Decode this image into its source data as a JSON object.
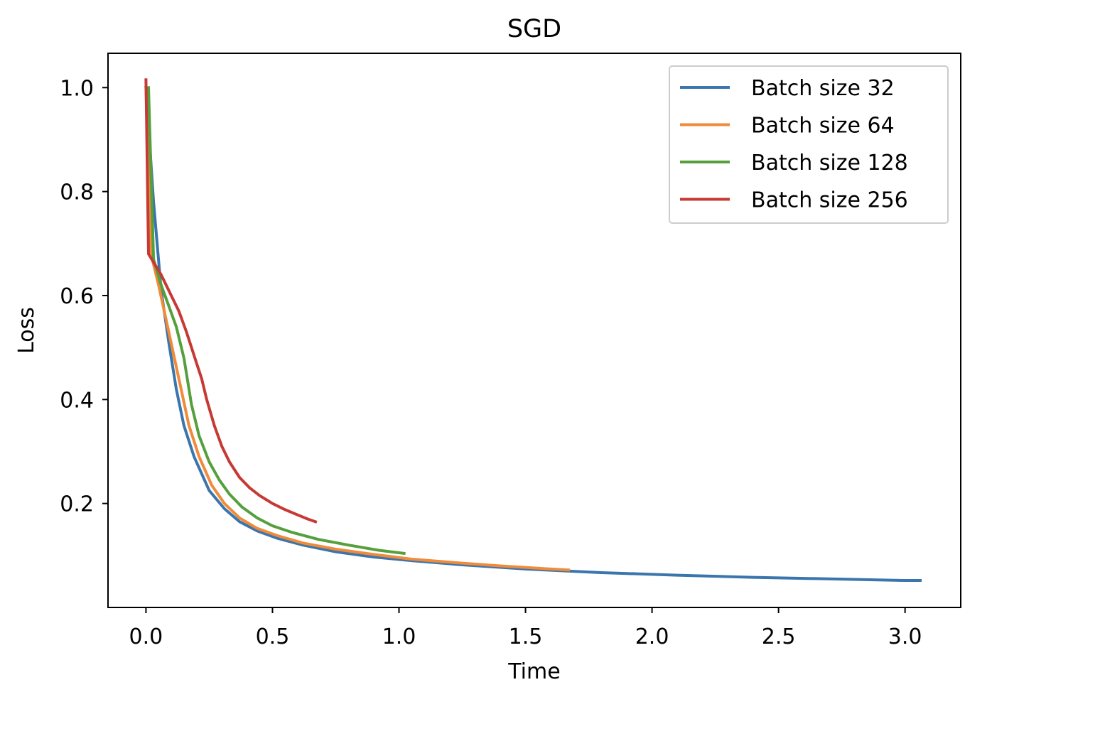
{
  "chart_data": {
    "type": "line",
    "title": "SGD",
    "xlabel": "Time",
    "ylabel": "Loss",
    "xlim": [
      -0.15,
      3.22
    ],
    "ylim": [
      0.0,
      1.066
    ],
    "xticks": [
      0.0,
      0.5,
      1.0,
      1.5,
      2.0,
      2.5,
      3.0
    ],
    "xtick_labels": [
      "0.0",
      "0.5",
      "1.0",
      "1.5",
      "2.0",
      "2.5",
      "3.0"
    ],
    "yticks": [
      0.2,
      0.4,
      0.6,
      0.8,
      1.0
    ],
    "ytick_labels": [
      "0.2",
      "0.4",
      "0.6",
      "0.8",
      "1.0"
    ],
    "grid": false,
    "legend_position": "top-right",
    "series": [
      {
        "name": "Batch size 32",
        "color": "#3a75ad",
        "x": [
          0.0,
          0.03,
          0.06,
          0.09,
          0.12,
          0.15,
          0.19,
          0.25,
          0.31,
          0.37,
          0.44,
          0.52,
          0.62,
          0.75,
          0.9,
          1.05,
          1.25,
          1.5,
          1.8,
          2.1,
          2.4,
          2.7,
          3.0,
          3.06
        ],
        "y": [
          1.0,
          0.78,
          0.61,
          0.51,
          0.42,
          0.35,
          0.29,
          0.225,
          0.19,
          0.165,
          0.147,
          0.133,
          0.12,
          0.107,
          0.097,
          0.09,
          0.082,
          0.074,
          0.067,
          0.062,
          0.058,
          0.055,
          0.052,
          0.052
        ]
      },
      {
        "name": "Batch size 64",
        "color": "#ef8b3a",
        "x": [
          0.0,
          0.02,
          0.05,
          0.09,
          0.13,
          0.17,
          0.21,
          0.26,
          0.31,
          0.37,
          0.44,
          0.52,
          0.62,
          0.75,
          0.9,
          1.05,
          1.2,
          1.4,
          1.6,
          1.67
        ],
        "y": [
          1.0,
          0.68,
          0.62,
          0.53,
          0.44,
          0.35,
          0.29,
          0.235,
          0.2,
          0.172,
          0.152,
          0.138,
          0.124,
          0.112,
          0.102,
          0.093,
          0.087,
          0.08,
          0.074,
          0.072
        ]
      },
      {
        "name": "Batch size 128",
        "color": "#55a03d",
        "x": [
          0.01,
          0.03,
          0.06,
          0.09,
          0.12,
          0.15,
          0.18,
          0.21,
          0.25,
          0.29,
          0.33,
          0.38,
          0.44,
          0.5,
          0.58,
          0.68,
          0.8,
          0.92,
          1.02
        ],
        "y": [
          1.0,
          0.67,
          0.62,
          0.58,
          0.54,
          0.48,
          0.39,
          0.33,
          0.28,
          0.245,
          0.218,
          0.193,
          0.172,
          0.157,
          0.144,
          0.131,
          0.12,
          0.11,
          0.104
        ]
      },
      {
        "name": "Batch size 256",
        "color": "#c63a35",
        "x": [
          0.0,
          0.01,
          0.06,
          0.1,
          0.13,
          0.16,
          0.18,
          0.2,
          0.22,
          0.24,
          0.27,
          0.3,
          0.33,
          0.37,
          0.41,
          0.45,
          0.5,
          0.55,
          0.6,
          0.64,
          0.67
        ],
        "y": [
          1.015,
          0.68,
          0.64,
          0.6,
          0.57,
          0.53,
          0.5,
          0.47,
          0.44,
          0.4,
          0.35,
          0.31,
          0.28,
          0.25,
          0.23,
          0.215,
          0.2,
          0.188,
          0.178,
          0.17,
          0.165
        ]
      }
    ]
  }
}
